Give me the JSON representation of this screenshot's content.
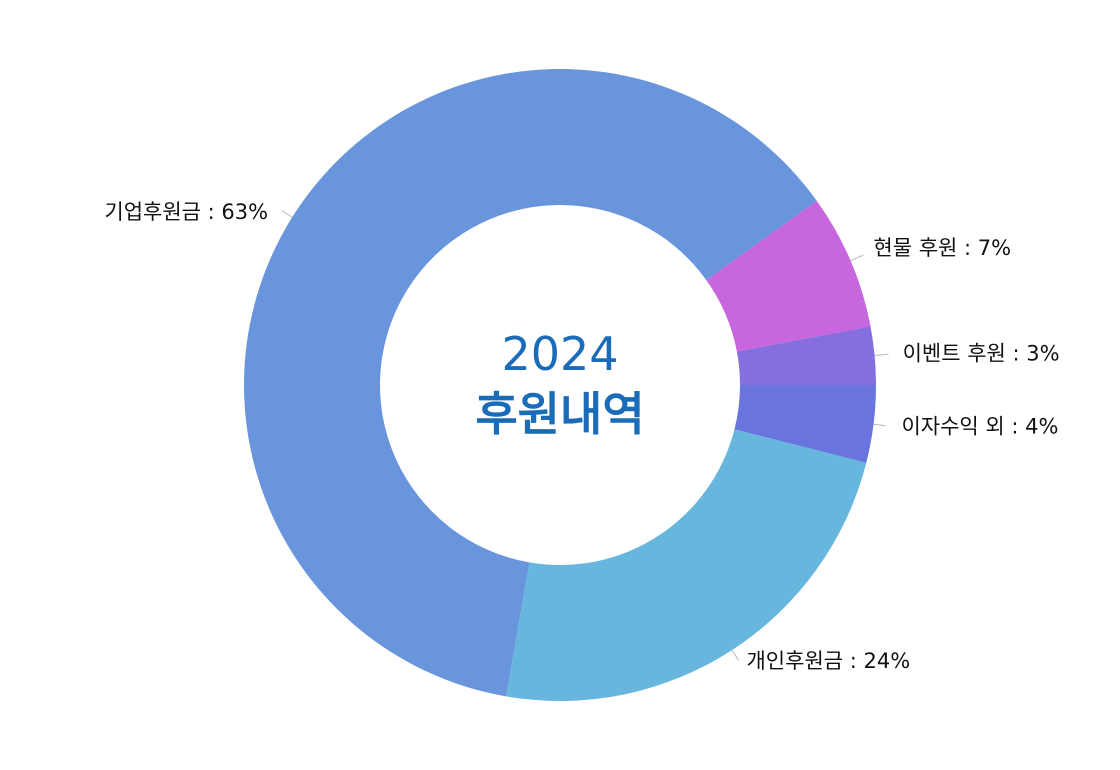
{
  "chart_data": {
    "type": "pie",
    "title": "2024",
    "subtitle": "후원내역",
    "series": [
      {
        "values": [
          4,
          24,
          63,
          7,
          3
        ]
      }
    ],
    "categories": [
      "이자수익 외",
      "개인후원금",
      "기업후원금",
      "현물 후원",
      "이벤트 후원"
    ],
    "labels": [
      "이자수익 외 : 4%",
      "개인후원금 : 24%",
      "기업후원금 : 63%",
      "현물 후원 : 7%",
      "이벤트 후원 : 3%"
    ],
    "colors": [
      "#6a74df",
      "#67b6dd",
      "#6995dd",
      "#c766dd",
      "#856ede"
    ],
    "legend": "none",
    "grid": false
  }
}
